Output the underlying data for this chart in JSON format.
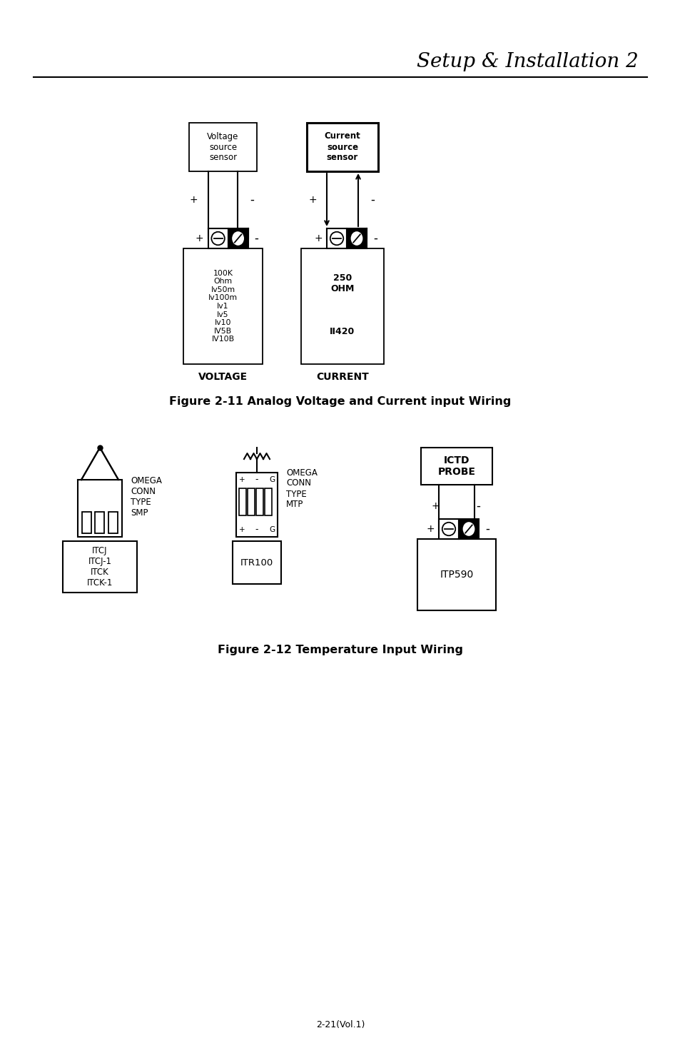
{
  "page_title": "Setup & Installation 2",
  "bg_color": "#ffffff",
  "text_color": "#000000",
  "fig1_caption": "Figure 2-11 Analog Voltage and Current input Wiring",
  "fig2_caption": "Figure 2-12 Temperature Input Wiring",
  "page_number": "2-21(Vol.1)",
  "voltage_box_text": "Voltage\nsource\nsensor",
  "current_box_text": "Current\nsource\nsensor",
  "voltage_label_text": "100K\nOhm\nIv50m\nIv100m\nIv1\nIv5\nIv10\nIV5B\nIV10B",
  "voltage_label_bottom": "VOLTAGE",
  "current_label_text_top": "250\nOHM",
  "current_label_text_bot": "II420",
  "current_label_bottom": "CURRENT",
  "tc_label1": "ITCJ\nITCJ-1\nITCK\nITCK-1",
  "tc_label2": "OMEGA\nCONN\nTYPE\nSMP",
  "tc_model1": "ITR100",
  "tc_label3": "OMEGA\nCONN\nTYPE\nMTP",
  "tc_label4": "ICTD\nPROBE",
  "tc_model2": "ITP590"
}
